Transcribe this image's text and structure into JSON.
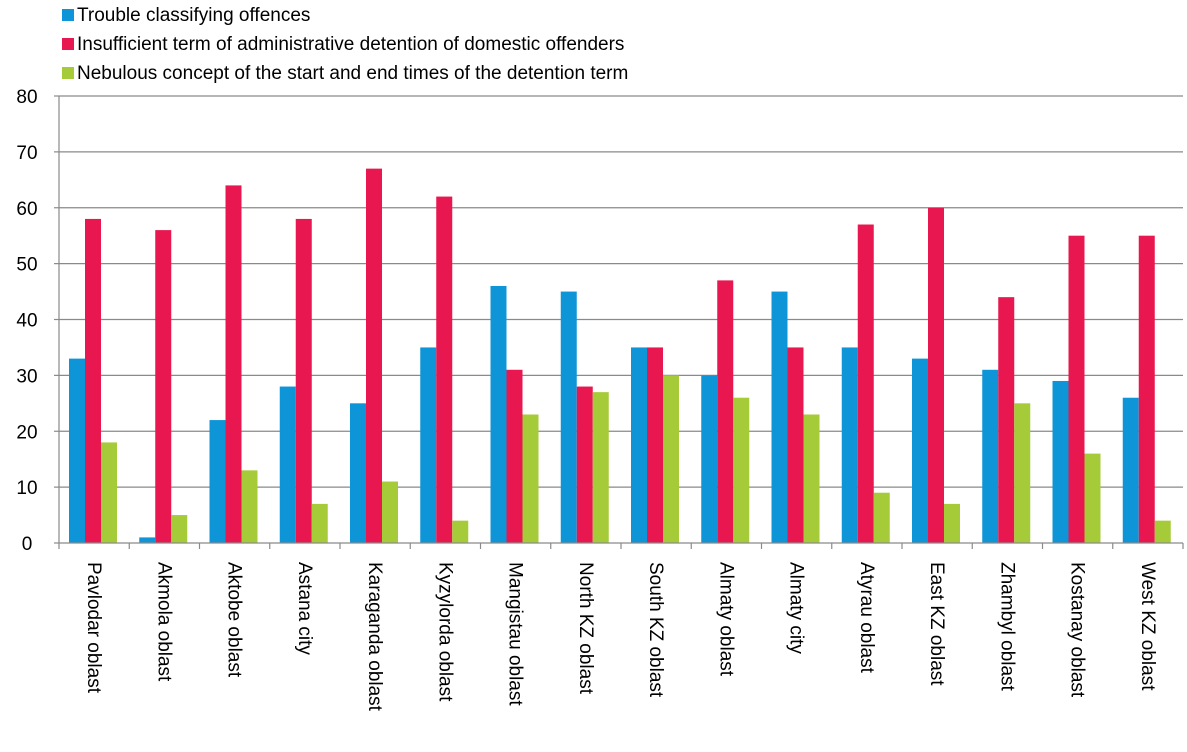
{
  "chart_data": {
    "type": "bar",
    "categories": [
      "Pavlodar oblast",
      "Akmola oblast",
      "Aktobe oblast",
      "Astana city",
      "Karaganda oblast",
      "Kyzylorda oblast",
      "Mangistau oblast",
      "North KZ oblast",
      "South KZ oblast",
      "Almaty oblast",
      "Almaty city",
      "Atyrau oblast",
      "East KZ oblast",
      "Zhambyl oblast",
      "Kostanay oblast",
      "West KZ oblast"
    ],
    "series": [
      {
        "name": "Trouble classifying offences",
        "color": "#0e95d8",
        "values": [
          33,
          1,
          22,
          28,
          25,
          35,
          46,
          45,
          35,
          30,
          45,
          35,
          33,
          31,
          29,
          26
        ]
      },
      {
        "name": "Insufficient term of administrative detention of domestic offenders",
        "color": "#e8174f",
        "values": [
          58,
          56,
          64,
          58,
          67,
          62,
          31,
          28,
          35,
          47,
          35,
          57,
          60,
          44,
          55,
          55
        ]
      },
      {
        "name": "Nebulous concept of the start and end times of the detention term",
        "color": "#a6cb38",
        "values": [
          18,
          5,
          13,
          7,
          11,
          4,
          23,
          27,
          30,
          26,
          23,
          9,
          7,
          25,
          16,
          4
        ]
      }
    ],
    "yticks": [
      "0",
      "10",
      "20",
      "30",
      "40",
      "50",
      "60",
      "70",
      "80"
    ],
    "ylim": [
      0,
      80
    ],
    "grid": true,
    "legend_position": "top-left",
    "title": "",
    "xlabel": "",
    "ylabel": ""
  }
}
